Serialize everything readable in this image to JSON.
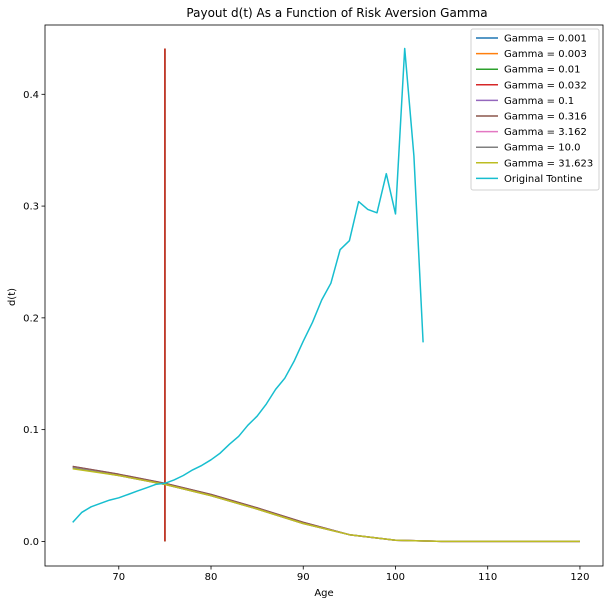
{
  "chart_data": {
    "type": "line",
    "title": "Payout d(t) As a Function of Risk Aversion Gamma",
    "xlabel": "Age",
    "ylabel": "d(t)",
    "xlim": [
      62,
      122.5
    ],
    "ylim": [
      -0.022,
      0.462
    ],
    "xticks": [
      70,
      80,
      90,
      100,
      110,
      120
    ],
    "xtick_labels": [
      "70",
      "80",
      "90",
      "100",
      "110",
      "120"
    ],
    "yticks": [
      0.0,
      0.1,
      0.2,
      0.3,
      0.4
    ],
    "ytick_labels": [
      "0.0",
      "0.1",
      "0.2",
      "0.3",
      "0.4"
    ],
    "grid": false,
    "legend_position": "top-right",
    "series": [
      {
        "name": "Gamma = 0.001",
        "color": "#1f77b4",
        "x": [
          75,
          75
        ],
        "y": [
          0.0,
          0.441
        ]
      },
      {
        "name": "Gamma = 0.003",
        "color": "#ff7f0e",
        "x": [
          75,
          75
        ],
        "y": [
          0.0,
          0.441
        ]
      },
      {
        "name": "Gamma = 0.01",
        "color": "#2ca02c",
        "x": [
          75,
          75
        ],
        "y": [
          0.0,
          0.441
        ]
      },
      {
        "name": "Gamma = 0.032",
        "color": "#d62728",
        "x": [
          75,
          75
        ],
        "y": [
          0.0,
          0.441
        ]
      },
      {
        "name": "Gamma = 0.1",
        "color": "#9467bd",
        "x": [
          65,
          70,
          75,
          80,
          85,
          90,
          95,
          100,
          105,
          110,
          120
        ],
        "y": [
          0.067,
          0.06,
          0.052,
          0.042,
          0.03,
          0.017,
          0.006,
          0.001,
          0.0,
          0.0,
          0.0
        ]
      },
      {
        "name": "Gamma = 0.316",
        "color": "#8c564b",
        "x": [
          65,
          70,
          75,
          80,
          85,
          90,
          95,
          100,
          105,
          110,
          120
        ],
        "y": [
          0.067,
          0.06,
          0.052,
          0.042,
          0.03,
          0.017,
          0.006,
          0.001,
          0.0,
          0.0,
          0.0
        ]
      },
      {
        "name": "Gamma = 3.162",
        "color": "#e377c2",
        "x": [
          65,
          70,
          75,
          80,
          85,
          90,
          95,
          100,
          105,
          110,
          120
        ],
        "y": [
          0.066,
          0.059,
          0.051,
          0.041,
          0.029,
          0.016,
          0.006,
          0.001,
          0.0,
          0.0,
          0.0
        ]
      },
      {
        "name": "Gamma = 10.0",
        "color": "#7f7f7f",
        "x": [
          65,
          70,
          75,
          80,
          85,
          90,
          95,
          100,
          105,
          110,
          120
        ],
        "y": [
          0.066,
          0.059,
          0.051,
          0.041,
          0.029,
          0.016,
          0.006,
          0.001,
          0.0,
          0.0,
          0.0
        ]
      },
      {
        "name": "Gamma = 31.623",
        "color": "#bcbd22",
        "x": [
          65,
          70,
          75,
          80,
          85,
          90,
          95,
          100,
          105,
          110,
          120
        ],
        "y": [
          0.065,
          0.059,
          0.051,
          0.041,
          0.029,
          0.016,
          0.006,
          0.001,
          0.0,
          0.0,
          0.0
        ]
      },
      {
        "name": "Original Tontine",
        "color": "#17becf",
        "x": [
          65,
          66,
          67,
          68,
          69,
          70,
          71,
          72,
          73,
          74,
          75,
          76,
          77,
          78,
          79,
          80,
          81,
          82,
          83,
          84,
          85,
          86,
          87,
          88,
          89,
          90,
          91,
          92,
          93,
          94,
          95,
          96,
          97,
          98,
          99,
          100,
          101,
          102,
          103
        ],
        "y": [
          0.017,
          0.026,
          0.031,
          0.034,
          0.037,
          0.039,
          0.042,
          0.045,
          0.048,
          0.051,
          0.052,
          0.055,
          0.059,
          0.064,
          0.068,
          0.073,
          0.079,
          0.087,
          0.094,
          0.104,
          0.112,
          0.123,
          0.136,
          0.146,
          0.161,
          0.179,
          0.196,
          0.216,
          0.231,
          0.261,
          0.269,
          0.304,
          0.297,
          0.294,
          0.329,
          0.293,
          0.441,
          0.345,
          0.178
        ]
      }
    ]
  }
}
